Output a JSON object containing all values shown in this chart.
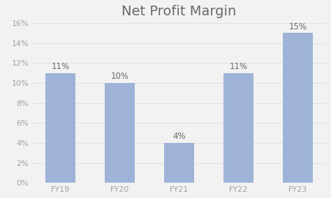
{
  "title": "Net Profit Margin",
  "categories": [
    "FY19",
    "FY20",
    "FY21",
    "FY22",
    "FY23"
  ],
  "values": [
    11,
    10,
    4,
    11,
    15
  ],
  "bar_color": "#9fb3d8",
  "background_color": "#f2f2f2",
  "ylim": [
    0,
    16
  ],
  "yticks": [
    0,
    2,
    4,
    6,
    8,
    10,
    12,
    14,
    16
  ],
  "title_fontsize": 14,
  "label_fontsize": 8.5,
  "tick_fontsize": 8,
  "bar_width": 0.5,
  "title_color": "#696969",
  "tick_color": "#a0a0a0",
  "label_color": "#696969",
  "grid_color": "#e0e0e0"
}
